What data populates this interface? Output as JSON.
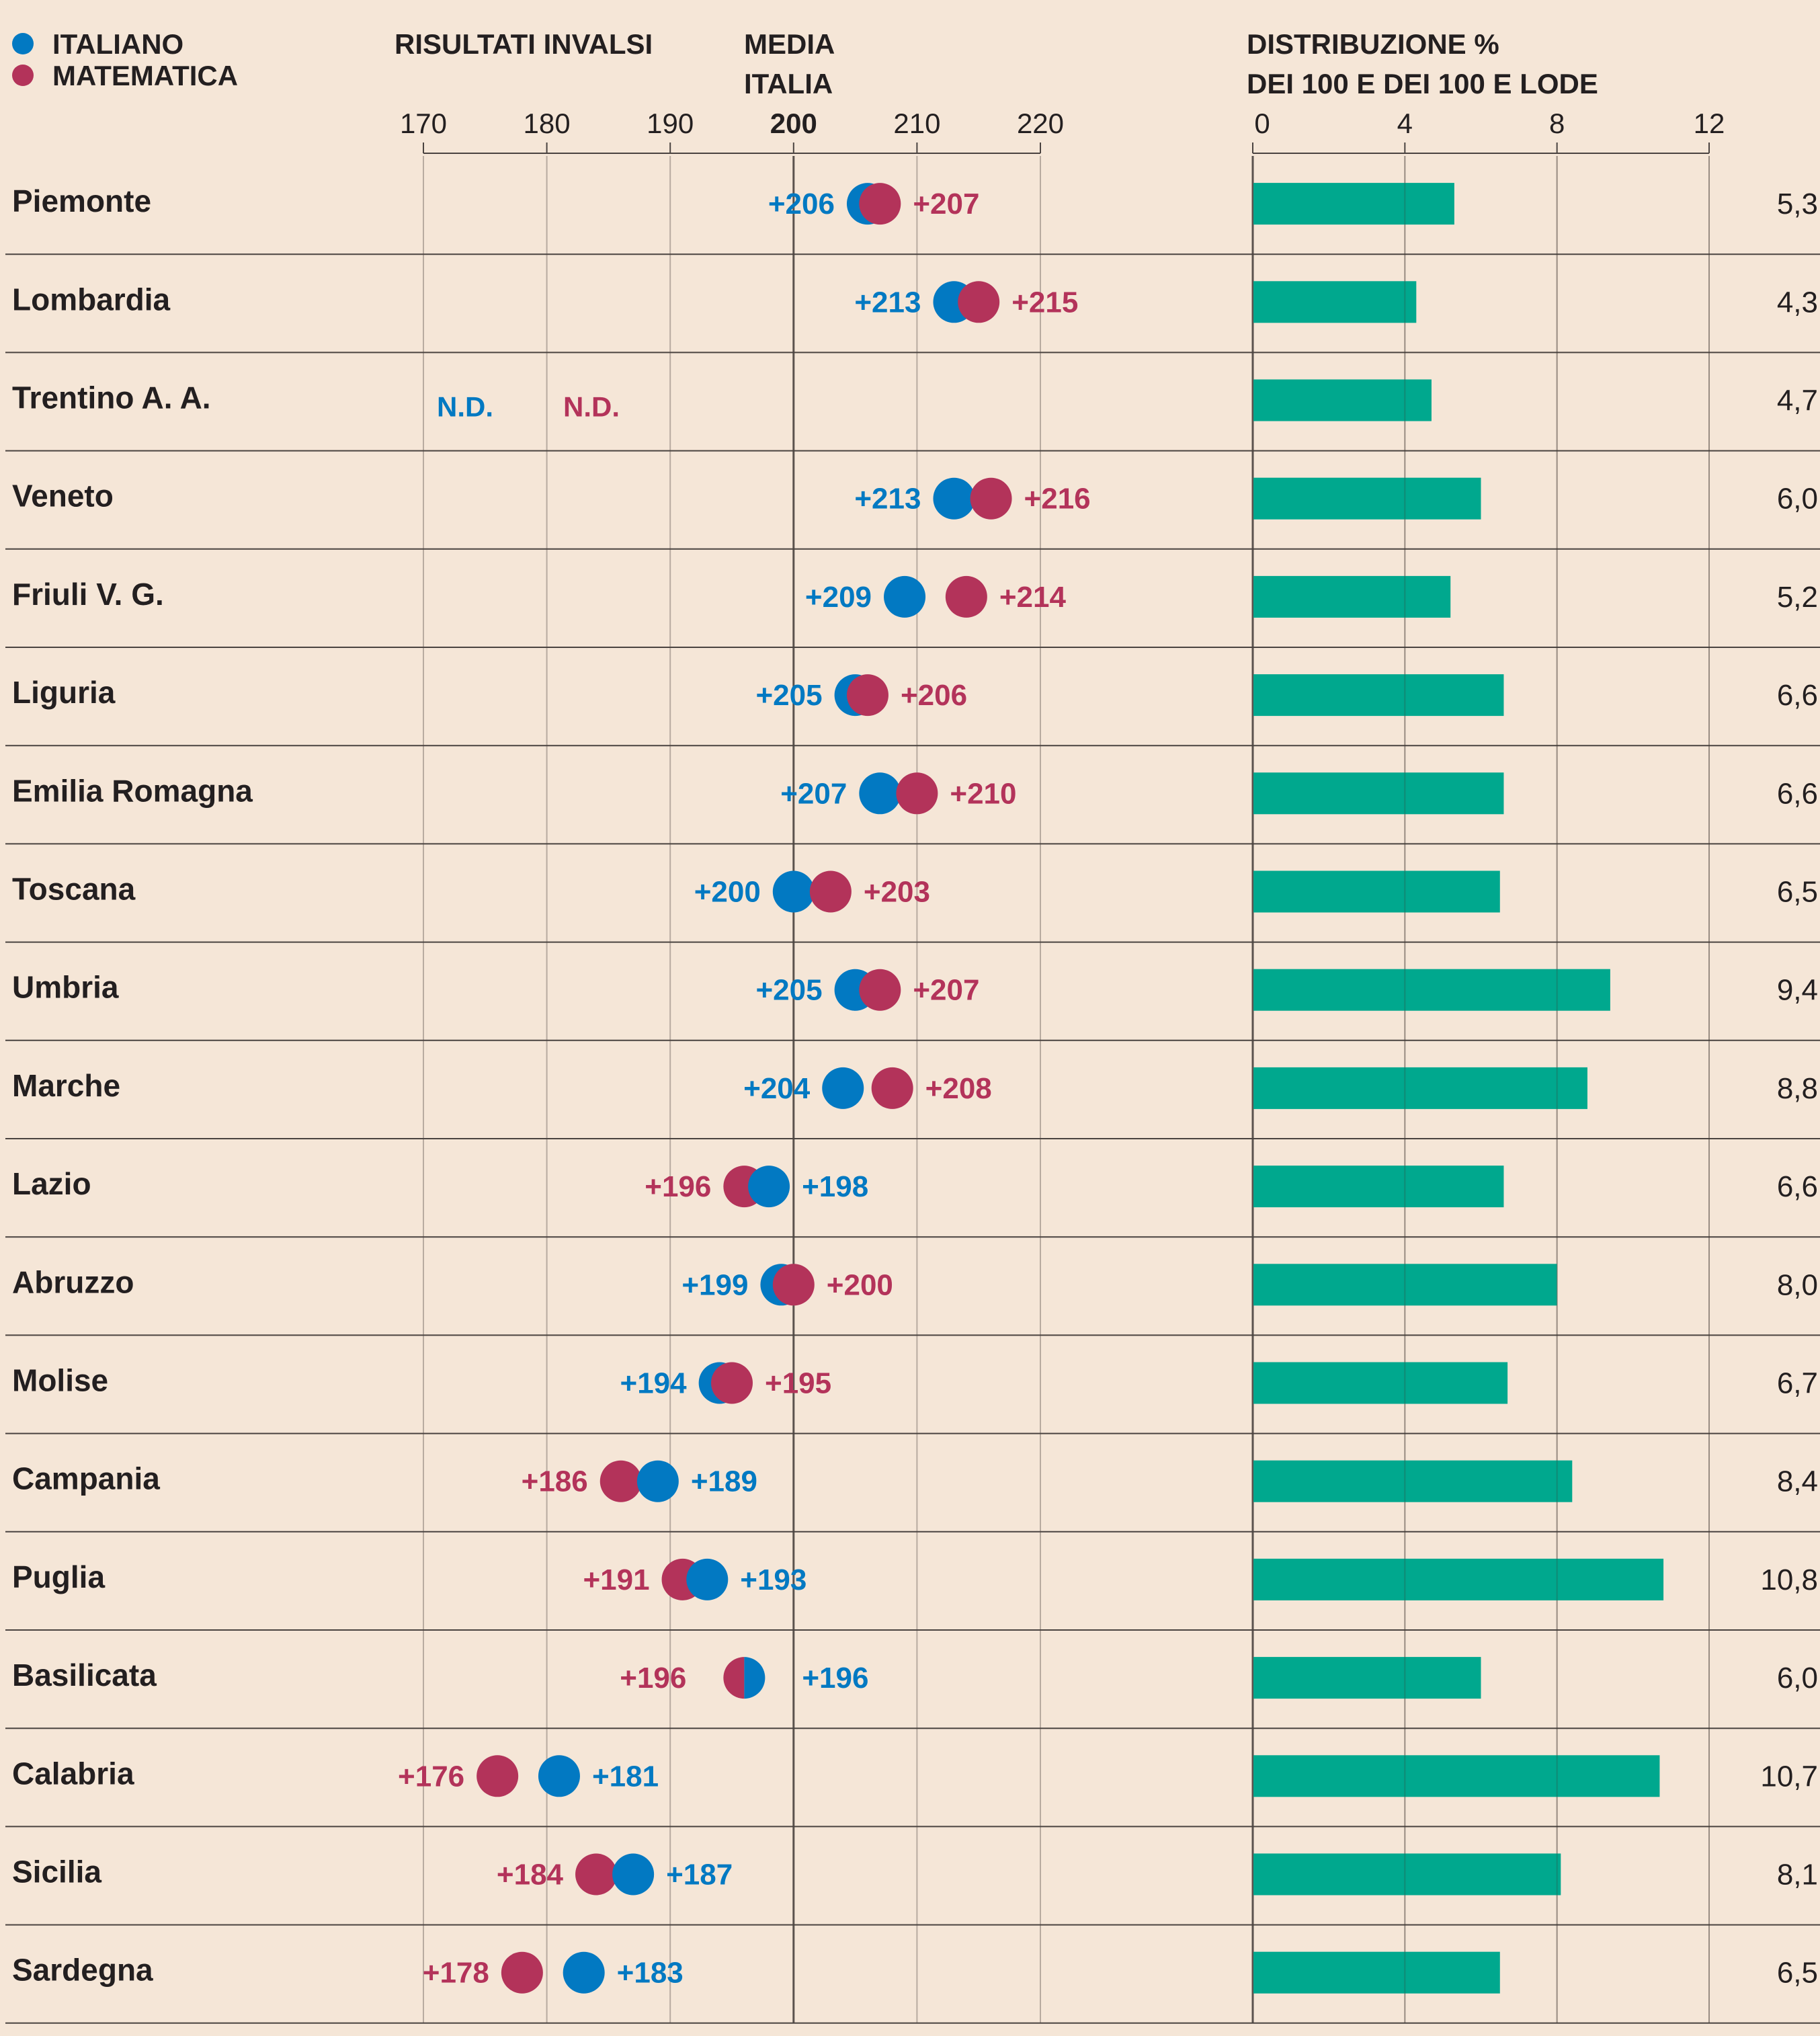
{
  "colors": {
    "background": "#f5e6d7",
    "italiano": "#0279c2",
    "matematica": "#b3335a",
    "bar": "#00a88e",
    "text": "#231f20",
    "grid": "#b8aba0",
    "rule": "#4a4340"
  },
  "legend": {
    "items": [
      {
        "label": "ITALIANO",
        "color": "#0279c2"
      },
      {
        "label": "MATEMATICA",
        "color": "#b3335a"
      }
    ]
  },
  "headers": {
    "invalsi": "RISULTATI INVALSI",
    "media_line1": "MEDIA",
    "media_line2": "ITALIA",
    "distribuzione_line1": "DISTRIBUZIONE %",
    "distribuzione_line2": "DEI 100 E DEI 100 E LODE"
  },
  "chart_data": [
    {
      "type": "scatter",
      "title": "RISULTATI INVALSI",
      "subtitle": "MEDIA ITALIA 200",
      "xlim": [
        170,
        220
      ],
      "xticks": [
        170,
        180,
        190,
        200,
        210,
        220
      ],
      "highlight_tick": 200,
      "reference_line": 200,
      "grid": true,
      "legend": "top-left",
      "categories": [
        "Piemonte",
        "Lombardia",
        "Trentino A. A.",
        "Veneto",
        "Friuli V. G.",
        "Liguria",
        "Emilia Romagna",
        "Toscana",
        "Umbria",
        "Marche",
        "Lazio",
        "Abruzzo",
        "Molise",
        "Campania",
        "Puglia",
        "Basilicata",
        "Calabria",
        "Sicilia",
        "Sardegna"
      ],
      "series": [
        {
          "name": "ITALIANO",
          "color": "#0279c2",
          "values": [
            206,
            213,
            null,
            213,
            209,
            205,
            207,
            200,
            205,
            204,
            198,
            199,
            194,
            189,
            193,
            196,
            181,
            187,
            183
          ]
        },
        {
          "name": "MATEMATICA",
          "color": "#b3335a",
          "values": [
            207,
            215,
            null,
            216,
            214,
            206,
            210,
            203,
            207,
            208,
            196,
            200,
            195,
            186,
            191,
            196,
            176,
            184,
            178
          ]
        }
      ],
      "missing_label": "N.D."
    },
    {
      "type": "bar",
      "orientation": "horizontal",
      "title": "DISTRIBUZIONE % DEI 100 E DEI 100 E LODE",
      "xlim": [
        0,
        12
      ],
      "xticks": [
        0,
        4,
        8,
        12
      ],
      "grid": true,
      "color": "#00a88e",
      "categories": [
        "Piemonte",
        "Lombardia",
        "Trentino A. A.",
        "Veneto",
        "Friuli V. G.",
        "Liguria",
        "Emilia Romagna",
        "Toscana",
        "Umbria",
        "Marche",
        "Lazio",
        "Abruzzo",
        "Molise",
        "Campania",
        "Puglia",
        "Basilicata",
        "Calabria",
        "Sicilia",
        "Sardegna"
      ],
      "values": [
        5.3,
        4.3,
        4.7,
        6.0,
        5.2,
        6.6,
        6.6,
        6.5,
        9.4,
        8.8,
        6.6,
        8.0,
        6.7,
        8.4,
        10.8,
        6.0,
        10.7,
        8.1,
        6.5
      ],
      "value_labels": [
        "5,3",
        "4,3",
        "4,7",
        "6,0",
        "5,2",
        "6,6",
        "6,6",
        "6,5",
        "9,4",
        "8,8",
        "6,6",
        "8,0",
        "6,7",
        "8,4",
        "10,8",
        "6,0",
        "10,7",
        "8,1",
        "6,5"
      ]
    }
  ]
}
